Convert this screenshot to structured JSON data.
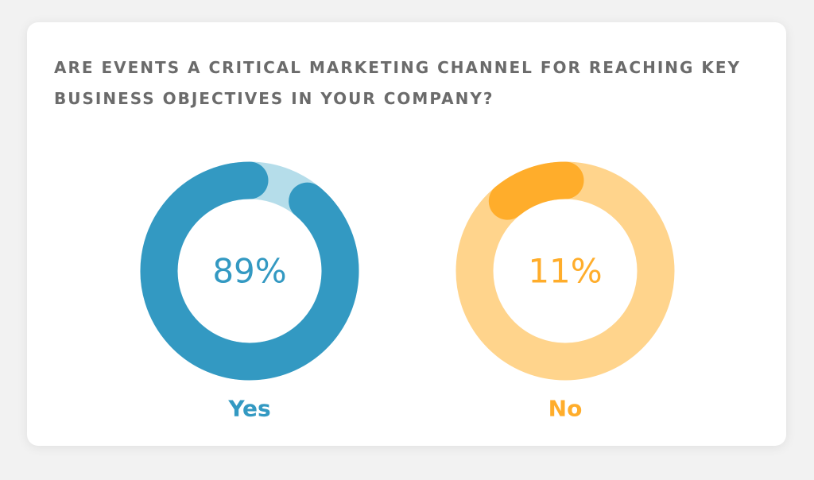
{
  "card": {
    "title": "ARE EVENTS A CRITICAL MARKETING CHANNEL FOR REACHING KEY BUSINESS OBJECTIVES IN YOUR COMPANY?"
  },
  "chart_data": [
    {
      "type": "pie",
      "style": "donut",
      "title": "",
      "category": "Yes",
      "value": 89,
      "label": "89%",
      "max": 100,
      "colors": {
        "fill": "#3399c2",
        "track": "#b5ddea",
        "text": "#3399c2"
      }
    },
    {
      "type": "pie",
      "style": "donut",
      "title": "",
      "category": "No",
      "value": 11,
      "label": "11%",
      "max": 100,
      "colors": {
        "fill": "#ffad2b",
        "track": "#ffd48c",
        "text": "#ffad2b"
      }
    }
  ]
}
